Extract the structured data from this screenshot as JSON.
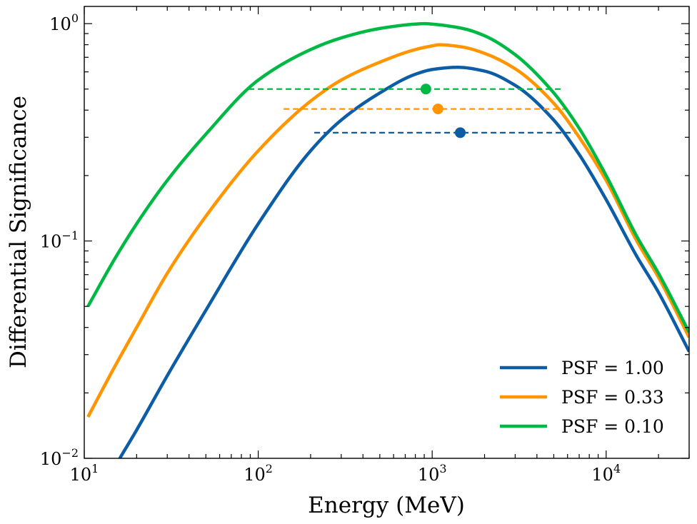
{
  "chart_data": {
    "type": "line",
    "xlabel": "Energy (MeV)",
    "ylabel": "Differential Significance",
    "xscale": "log",
    "yscale": "log",
    "xlim": [
      10,
      30000
    ],
    "ylim": [
      0.01,
      1.2
    ],
    "grid": false,
    "legend_position": "bottom-right",
    "x_ticks": [
      {
        "base": "10",
        "exp": "1",
        "value": 10
      },
      {
        "base": "10",
        "exp": "2",
        "value": 100
      },
      {
        "base": "10",
        "exp": "3",
        "value": 1000
      },
      {
        "base": "10",
        "exp": "4",
        "value": 10000
      }
    ],
    "y_ticks": [
      {
        "base": "10",
        "exp": "−2",
        "value": 0.01
      },
      {
        "base": "10",
        "exp": "−1",
        "value": 0.1
      },
      {
        "base": "10",
        "exp": "0",
        "value": 1
      }
    ],
    "series": [
      {
        "name": "PSF = 1.00",
        "color": "#0c5da5",
        "x": [
          16,
          20,
          30,
          50,
          100,
          200,
          300,
          500,
          800,
          1000,
          1400,
          2000,
          3000,
          5000,
          7000,
          10000,
          15000,
          20000,
          30000
        ],
        "y": [
          0.01,
          0.0135,
          0.024,
          0.048,
          0.12,
          0.26,
          0.36,
          0.48,
          0.585,
          0.615,
          0.63,
          0.605,
          0.52,
          0.36,
          0.25,
          0.155,
          0.085,
          0.058,
          0.031
        ],
        "marker": {
          "x": 1450,
          "y": 0.315
        },
        "band": {
          "x_start": 210,
          "x_end": 6800,
          "y": 0.315
        }
      },
      {
        "name": "PSF = 0.33",
        "color": "#ff9500",
        "x": [
          10.5,
          15,
          20,
          30,
          50,
          100,
          200,
          300,
          500,
          800,
          1000,
          1100,
          1500,
          2000,
          3000,
          5000,
          7000,
          10000,
          15000,
          20000,
          30000
        ],
        "y": [
          0.0155,
          0.0265,
          0.04,
          0.071,
          0.13,
          0.26,
          0.44,
          0.55,
          0.665,
          0.76,
          0.79,
          0.8,
          0.78,
          0.73,
          0.62,
          0.43,
          0.3,
          0.19,
          0.1,
          0.068,
          0.036
        ],
        "marker": {
          "x": 1080,
          "y": 0.405
        },
        "band": {
          "x_start": 140,
          "x_end": 6200,
          "y": 0.405
        }
      },
      {
        "name": "PSF = 0.10",
        "color": "#00b945",
        "x": [
          10.5,
          15,
          20,
          30,
          50,
          100,
          200,
          300,
          500,
          800,
          900,
          1000,
          1500,
          2000,
          3000,
          5000,
          7000,
          10000,
          15000,
          20000,
          30000
        ],
        "y": [
          0.05,
          0.083,
          0.12,
          0.19,
          0.31,
          0.55,
          0.76,
          0.86,
          0.95,
          0.995,
          1.0,
          0.995,
          0.95,
          0.88,
          0.72,
          0.48,
          0.33,
          0.2,
          0.105,
          0.071,
          0.038
        ],
        "marker": {
          "x": 920,
          "y": 0.5
        },
        "band": {
          "x_start": 88,
          "x_end": 5700,
          "y": 0.5
        }
      }
    ]
  }
}
